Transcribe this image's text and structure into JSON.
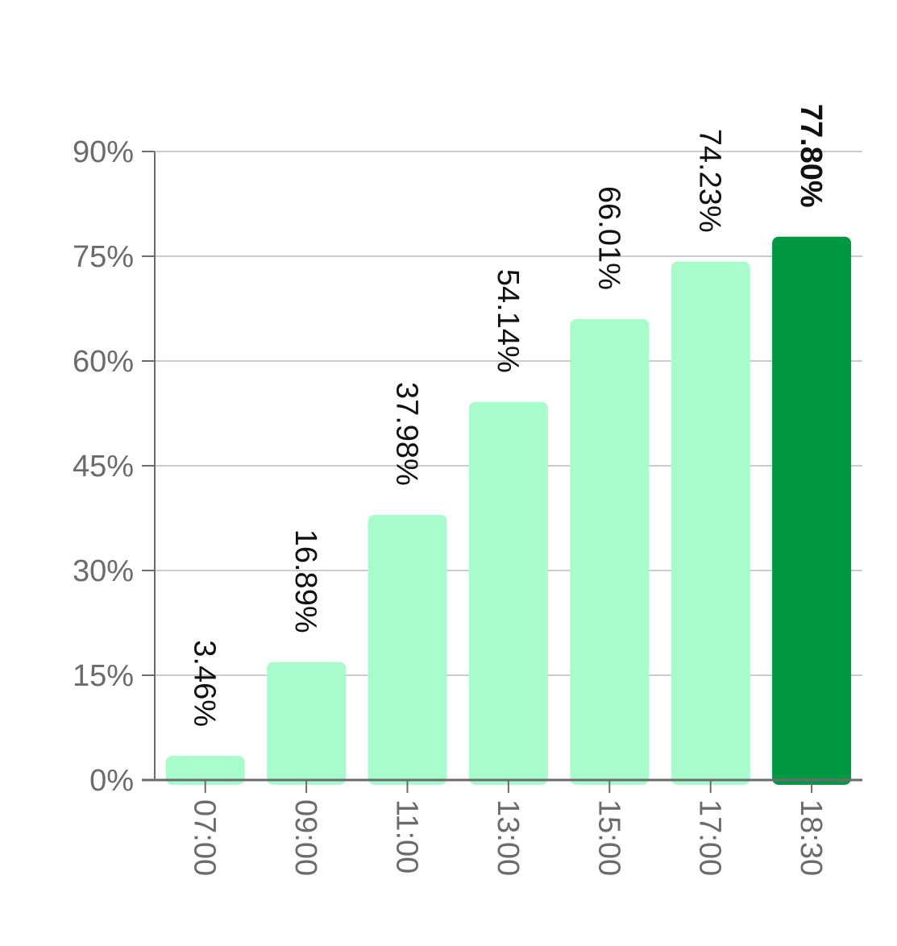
{
  "chart_data": {
    "type": "bar",
    "title": "",
    "xlabel": "",
    "ylabel": "",
    "categories": [
      "07:00",
      "09:00",
      "11:00",
      "13:00",
      "15:00",
      "17:00",
      "18:30"
    ],
    "values": [
      3.46,
      16.89,
      37.98,
      54.14,
      66.01,
      74.23,
      77.8
    ],
    "data_labels": [
      "3.46%",
      "16.89%",
      "37.98%",
      "54.14%",
      "66.01%",
      "74.23%",
      "77.80%"
    ],
    "ylim": [
      0,
      90
    ],
    "yticks": [
      0,
      15,
      30,
      45,
      60,
      75,
      90
    ],
    "ytick_labels": [
      "0%",
      "15%",
      "30%",
      "45%",
      "60%",
      "75%",
      "90%"
    ],
    "grid": true,
    "highlight_index": 6,
    "colors": {
      "bar": "#a8fccb",
      "highlight": "#029841",
      "grid": "#cccccc",
      "axis": "#6b6b6b",
      "tick_text": "#6b6b6b",
      "label_text": "#111111"
    }
  }
}
